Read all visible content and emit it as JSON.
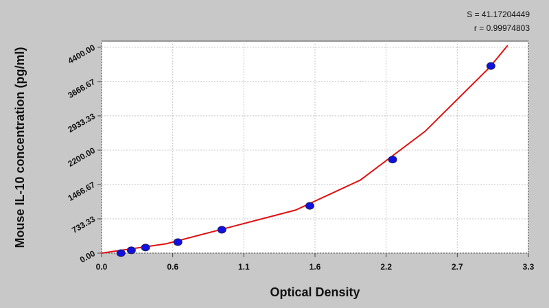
{
  "chart_data": {
    "type": "scatter",
    "annotations": [
      "S = 41.17204449",
      "r = 0.99974803"
    ],
    "x_label": "Optical Density",
    "y_label": "Mouse IL-10 concentration (pg/ml)",
    "xlim": [
      0,
      3.3
    ],
    "ylim": [
      0,
      4530
    ],
    "xticks": [
      {
        "value": 0,
        "label": "0.0"
      },
      {
        "value": 0.55,
        "label": "0.6"
      },
      1.1,
      {
        "value": 1.65,
        "label": "1.6"
      },
      2.2,
      {
        "value": 2.75,
        "label": "2.7"
      },
      3.3
    ],
    "yticks": [
      {
        "value": 0,
        "label": "0.00"
      },
      733.33,
      1466.67,
      {
        "value": 2200,
        "label": "2200.00"
      },
      2933.33,
      3666.67,
      {
        "value": 4400,
        "label": "4400.00"
      }
    ],
    "grid": true,
    "points": {
      "color": "#1010e0",
      "x": [
        0.15,
        0.23,
        0.34,
        0.59,
        0.93,
        1.61,
        2.25,
        3.01
      ],
      "y": [
        0,
        60,
        120,
        235,
        500,
        1010,
        2000,
        4000
      ]
    },
    "curve": {
      "color": "#e01010",
      "x": [
        0,
        0.5,
        1.0,
        1.5,
        2.0,
        2.5,
        3.0,
        3.14
      ],
      "y": [
        0,
        200,
        560,
        920,
        1560,
        2600,
        3970,
        4440
      ]
    }
  }
}
